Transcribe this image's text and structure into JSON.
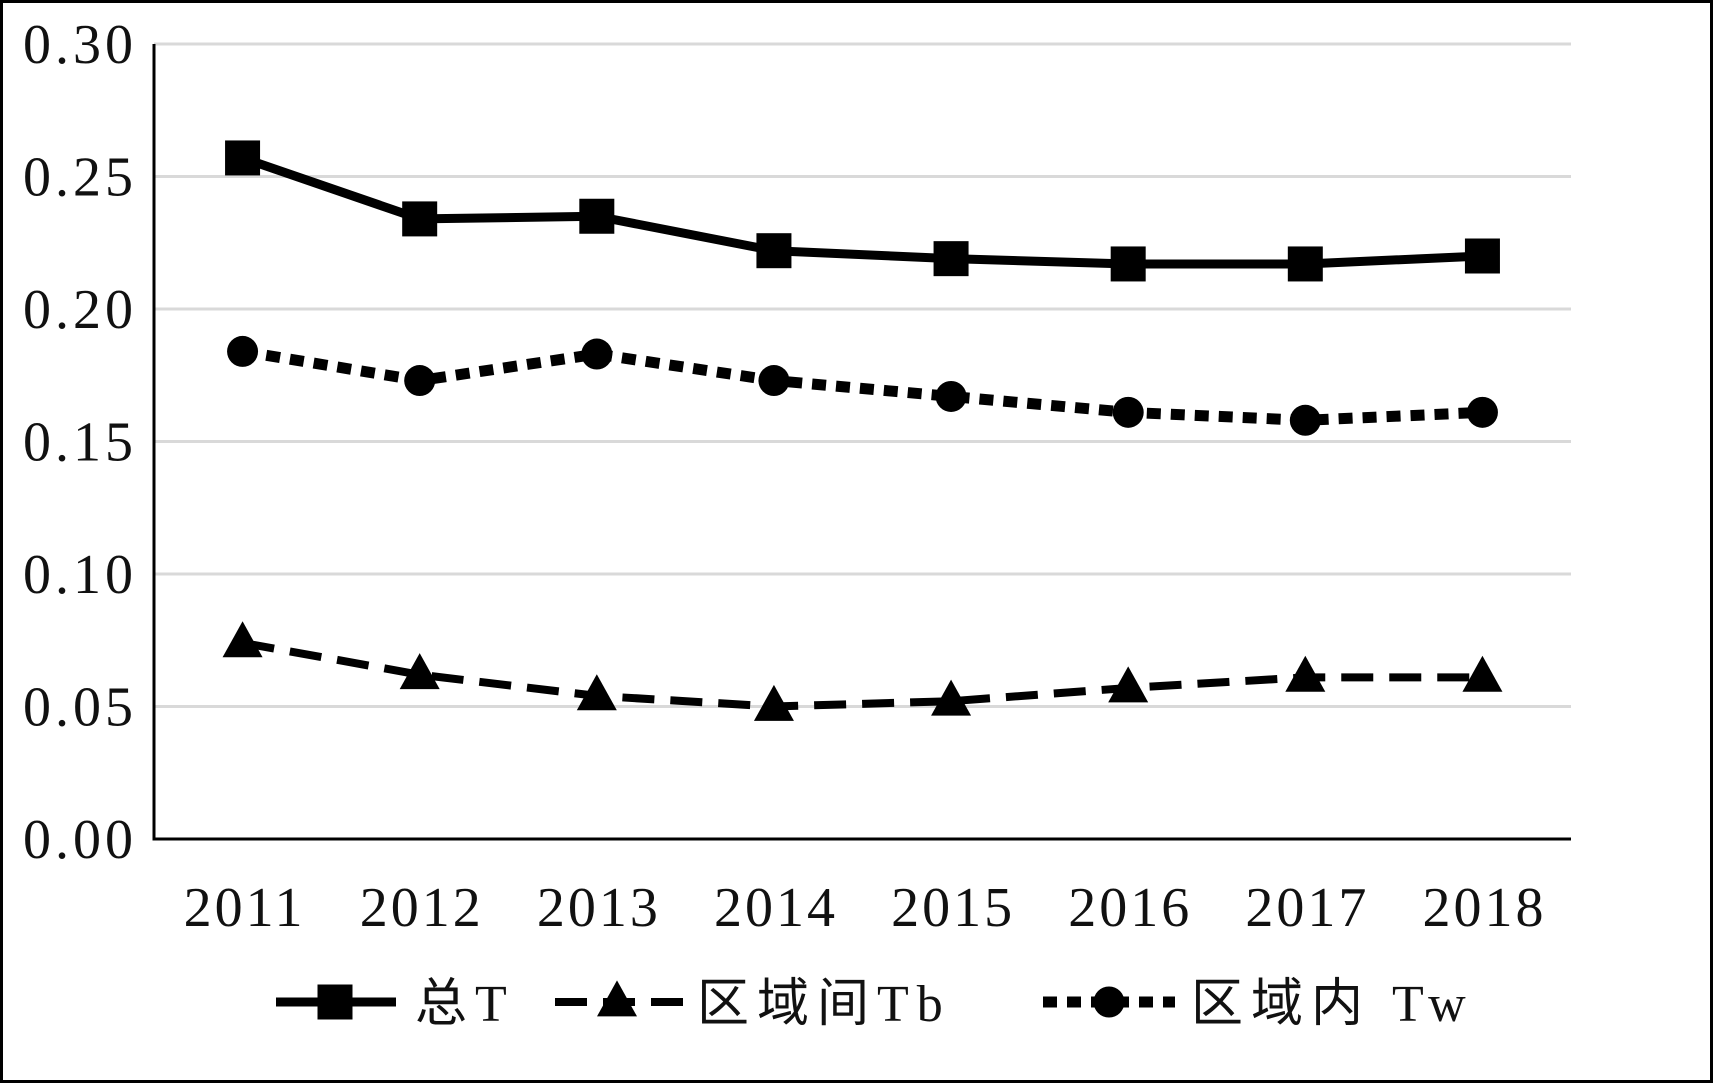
{
  "chart_data": {
    "type": "line",
    "categories": [
      "2011",
      "2012",
      "2013",
      "2014",
      "2015",
      "2016",
      "2017",
      "2018"
    ],
    "series": [
      {
        "name": "总T",
        "values": [
          0.257,
          0.234,
          0.235,
          0.222,
          0.219,
          0.217,
          0.217,
          0.22
        ],
        "line_style": "solid",
        "marker": "square"
      },
      {
        "name": "区域间Tb",
        "values": [
          0.074,
          0.062,
          0.054,
          0.05,
          0.052,
          0.057,
          0.061,
          0.061
        ],
        "line_style": "dashed",
        "marker": "triangle"
      },
      {
        "name": "区域内 Tw",
        "values": [
          0.184,
          0.173,
          0.183,
          0.173,
          0.167,
          0.161,
          0.158,
          0.161
        ],
        "line_style": "dotted",
        "marker": "circle"
      }
    ],
    "ylim": [
      0,
      0.3
    ],
    "yticks": [
      "0.00",
      "0.05",
      "0.10",
      "0.15",
      "0.20",
      "0.25",
      "0.30"
    ],
    "grid": true,
    "legend_position": "bottom",
    "colors": {
      "series": "#000000",
      "grid": "#d9d9d9",
      "axis": "#000000"
    }
  }
}
